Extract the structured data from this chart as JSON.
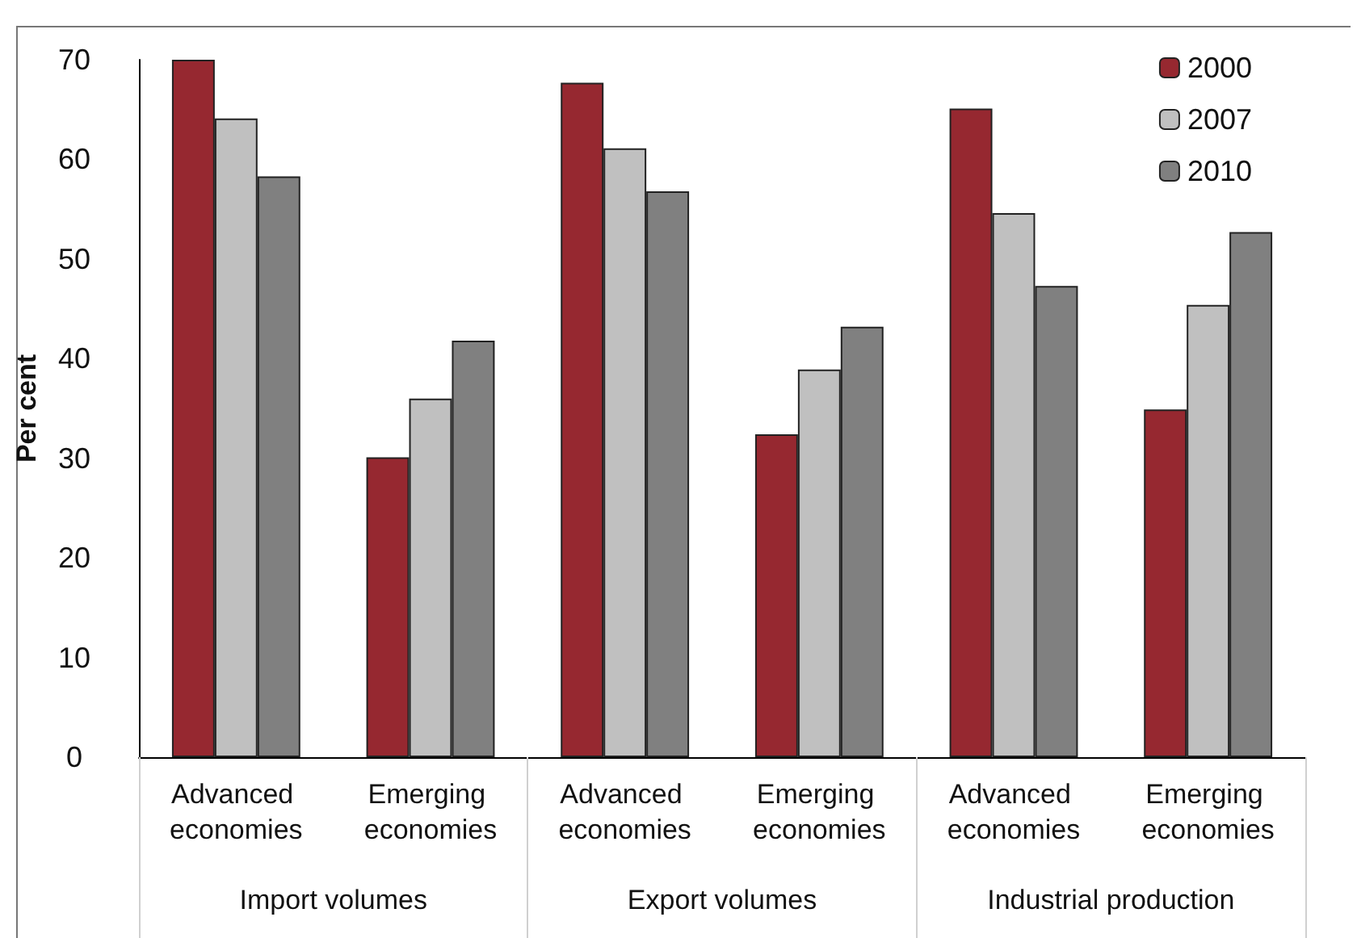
{
  "chart_data": {
    "type": "bar",
    "ylabel": "Per cent",
    "categories": [
      "Advanced economies",
      "Emerging economies",
      "Advanced economies",
      "Emerging economies",
      "Advanced economies",
      "Emerging economies"
    ],
    "series": [
      {
        "name": "2000",
        "color": "#962830",
        "values": [
          70,
          30.1,
          67.7,
          32.4,
          65.1,
          34.9
        ]
      },
      {
        "name": "2007",
        "color": "#c0c0c0",
        "values": [
          64.1,
          36,
          61.1,
          38.9,
          54.6,
          45.4
        ]
      },
      {
        "name": "2010",
        "color": "#808080",
        "values": [
          58.3,
          41.8,
          56.8,
          43.2,
          47.3,
          52.7
        ]
      }
    ],
    "annotations": [
      "Import volumes",
      "Export volumes",
      "Industrial production"
    ],
    "ylim": [
      0,
      70
    ],
    "yticks": [
      0,
      10,
      20,
      30,
      40,
      50,
      60,
      70
    ],
    "grid": false,
    "legend": "top right"
  }
}
